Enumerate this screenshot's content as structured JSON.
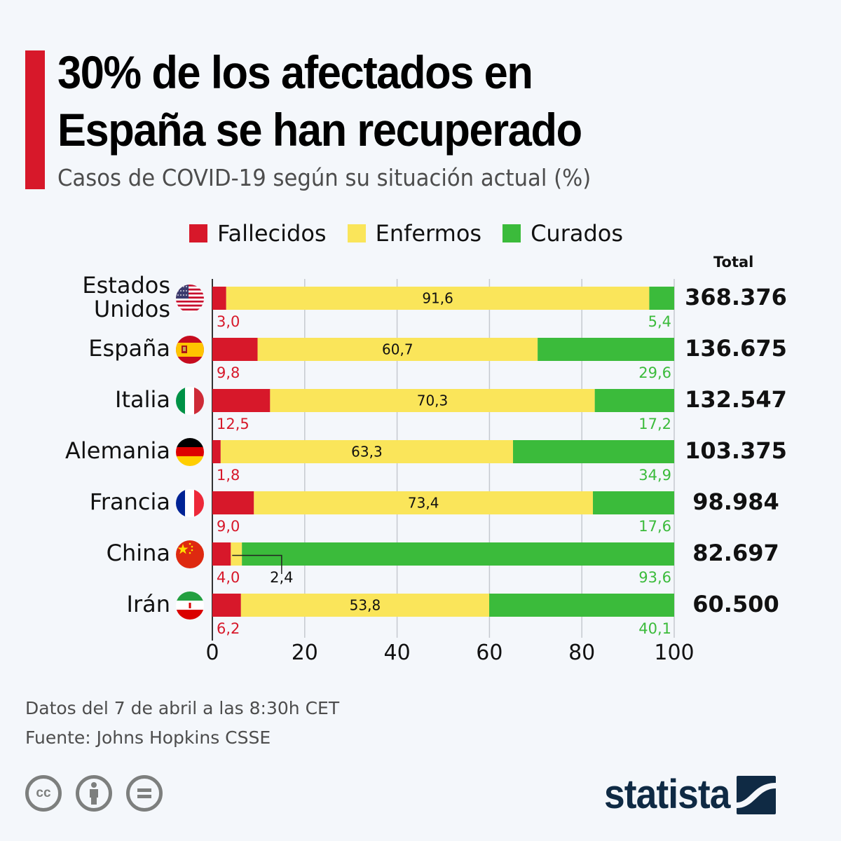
{
  "header": {
    "title_line1": "30% de los afectados en",
    "title_line2": "España se han recuperado",
    "subtitle": "Casos de COVID-19 según su situación actual (%)",
    "accent_color": "#d7182a"
  },
  "legend": [
    {
      "label": "Fallecidos",
      "color": "#d7182a"
    },
    {
      "label": "Enfermos",
      "color": "#fae55a"
    },
    {
      "label": "Curados",
      "color": "#3bbb3b"
    }
  ],
  "total_header": "Total",
  "countries": [
    {
      "name": "Estados Unidos",
      "name_lines": [
        "Estados",
        "Unidos"
      ],
      "flag": "us-flag-icon",
      "total": "368.376"
    },
    {
      "name": "España",
      "name_lines": [
        "España"
      ],
      "flag": "spain-flag-icon",
      "total": "136.675"
    },
    {
      "name": "Italia",
      "name_lines": [
        "Italia"
      ],
      "flag": "italy-flag-icon",
      "total": "132.547"
    },
    {
      "name": "Alemania",
      "name_lines": [
        "Alemania"
      ],
      "flag": "germany-flag-icon",
      "total": "103.375"
    },
    {
      "name": "Francia",
      "name_lines": [
        "Francia"
      ],
      "flag": "france-flag-icon",
      "total": "98.984"
    },
    {
      "name": "China",
      "name_lines": [
        "China"
      ],
      "flag": "china-flag-icon",
      "total": "82.697"
    },
    {
      "name": "Irán",
      "name_lines": [
        "Irán"
      ],
      "flag": "iran-flag-icon",
      "total": "60.500"
    }
  ],
  "chart_data": {
    "type": "bar",
    "orientation": "horizontal",
    "stacked": true,
    "title": "30% de los afectados en España se han recuperado",
    "subtitle": "Casos de COVID-19 según su situación actual (%)",
    "categories": [
      "Estados Unidos",
      "España",
      "Italia",
      "Alemania",
      "Francia",
      "China",
      "Irán"
    ],
    "series": [
      {
        "name": "Fallecidos",
        "color": "#d7182a",
        "values": [
          3.0,
          9.8,
          12.5,
          1.8,
          9.0,
          4.0,
          6.2
        ],
        "labels": [
          "3,0",
          "9,8",
          "12,5",
          "1,8",
          "9,0",
          "4,0",
          "6,2"
        ]
      },
      {
        "name": "Enfermos",
        "color": "#fae55a",
        "values": [
          91.6,
          60.7,
          70.3,
          63.3,
          73.4,
          2.4,
          53.8
        ],
        "labels": [
          "91,6",
          "60,7",
          "70,3",
          "63,3",
          "73,4",
          "2,4",
          "53,8"
        ]
      },
      {
        "name": "Curados",
        "color": "#3bbb3b",
        "values": [
          5.4,
          29.6,
          17.2,
          34.9,
          17.6,
          93.6,
          40.1
        ],
        "labels": [
          "5,4",
          "29,6",
          "17,2",
          "34,9",
          "17,6",
          "93,6",
          "40,1"
        ]
      }
    ],
    "totals": [
      "368.376",
      "136.675",
      "132.547",
      "103.375",
      "98.984",
      "82.697",
      "60.500"
    ],
    "xlabel": "",
    "ylabel": "",
    "xlim": [
      0,
      100
    ],
    "xticks": [
      0,
      20,
      40,
      60,
      80,
      100
    ],
    "xtick_labels": [
      "0",
      "20",
      "40",
      "60",
      "80",
      "100"
    ],
    "grid": true,
    "legend_position": "top"
  },
  "footer": {
    "date_note": "Datos del 7 de abril a las 8:30h CET",
    "source": "Fuente: Johns Hopkins CSSE"
  },
  "license_icons": [
    "cc-icon",
    "attribution-icon",
    "no-derivatives-icon"
  ],
  "cc_text": "cc",
  "logo": {
    "text": "statista"
  }
}
